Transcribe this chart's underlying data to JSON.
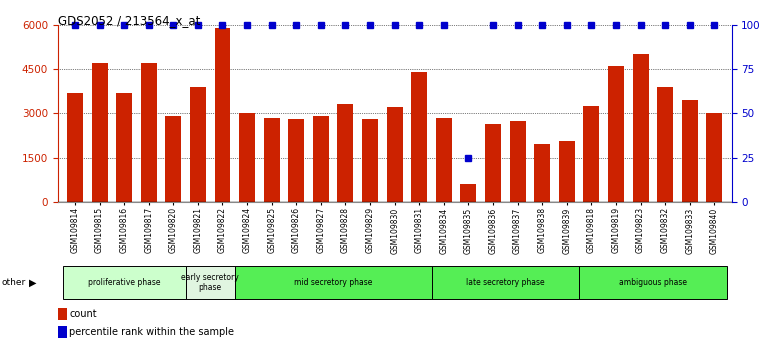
{
  "title": "GDS2052 / 213564_x_at",
  "samples": [
    "GSM109814",
    "GSM109815",
    "GSM109816",
    "GSM109817",
    "GSM109820",
    "GSM109821",
    "GSM109822",
    "GSM109824",
    "GSM109825",
    "GSM109826",
    "GSM109827",
    "GSM109828",
    "GSM109829",
    "GSM109830",
    "GSM109831",
    "GSM109834",
    "GSM109835",
    "GSM109836",
    "GSM109837",
    "GSM109838",
    "GSM109839",
    "GSM109818",
    "GSM109819",
    "GSM109823",
    "GSM109832",
    "GSM109833",
    "GSM109840"
  ],
  "counts": [
    3700,
    4700,
    3700,
    4700,
    2900,
    3900,
    5900,
    3000,
    2850,
    2800,
    2900,
    3300,
    2800,
    3200,
    4400,
    2850,
    600,
    2650,
    2750,
    1950,
    2050,
    3250,
    4600,
    5000,
    3900,
    3450,
    3000
  ],
  "percentiles": [
    100,
    100,
    100,
    100,
    100,
    100,
    100,
    100,
    100,
    100,
    100,
    100,
    100,
    100,
    100,
    100,
    25,
    100,
    100,
    100,
    100,
    100,
    100,
    100,
    100,
    100,
    100
  ],
  "phases": [
    {
      "label": "proliferative phase",
      "start": 0,
      "end": 5,
      "color": "#ccffcc"
    },
    {
      "label": "early secretory\nphase",
      "start": 5,
      "end": 7,
      "color": "#e0f5e0"
    },
    {
      "label": "mid secretory phase",
      "start": 7,
      "end": 15,
      "color": "#55ee55"
    },
    {
      "label": "late secretory phase",
      "start": 15,
      "end": 21,
      "color": "#55ee55"
    },
    {
      "label": "ambiguous phase",
      "start": 21,
      "end": 27,
      "color": "#55ee55"
    }
  ],
  "bar_color": "#cc2200",
  "percentile_color": "#0000cc",
  "ylim_left": [
    0,
    6000
  ],
  "ylim_right": [
    0,
    100
  ],
  "yticks_left": [
    0,
    1500,
    3000,
    4500,
    6000
  ],
  "yticks_right": [
    0,
    25,
    50,
    75,
    100
  ],
  "legend_count_label": "count",
  "legend_percentile_label": "percentile rank within the sample",
  "plot_bg": "#ffffff",
  "fig_bg": "#ffffff"
}
